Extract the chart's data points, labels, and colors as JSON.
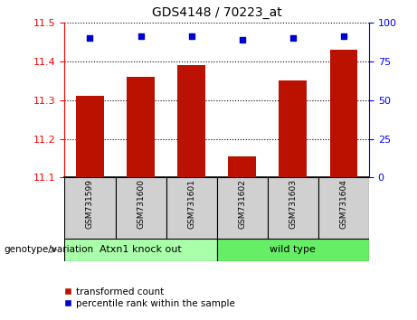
{
  "title": "GDS4148 / 70223_at",
  "samples": [
    "GSM731599",
    "GSM731600",
    "GSM731601",
    "GSM731602",
    "GSM731603",
    "GSM731604"
  ],
  "transformed_count": [
    11.31,
    11.36,
    11.39,
    11.155,
    11.35,
    11.43
  ],
  "percentile_rank": [
    90,
    91,
    91,
    89,
    90,
    91
  ],
  "ylim_left": [
    11.1,
    11.5
  ],
  "ylim_right": [
    0,
    100
  ],
  "yticks_left": [
    11.1,
    11.2,
    11.3,
    11.4,
    11.5
  ],
  "yticks_right": [
    0,
    25,
    50,
    75,
    100
  ],
  "bar_color": "#bb1100",
  "scatter_color": "#0000cc",
  "group_labels": [
    "Atxn1 knock out",
    "wild type"
  ],
  "group_ranges": [
    [
      0,
      3
    ],
    [
      3,
      6
    ]
  ],
  "group_color_left": "#aaffaa",
  "group_color_right": "#66ee66",
  "sample_box_color": "#d0d0d0",
  "legend_bar_label": "transformed count",
  "legend_scatter_label": "percentile rank within the sample",
  "genotype_label": "genotype/variation"
}
